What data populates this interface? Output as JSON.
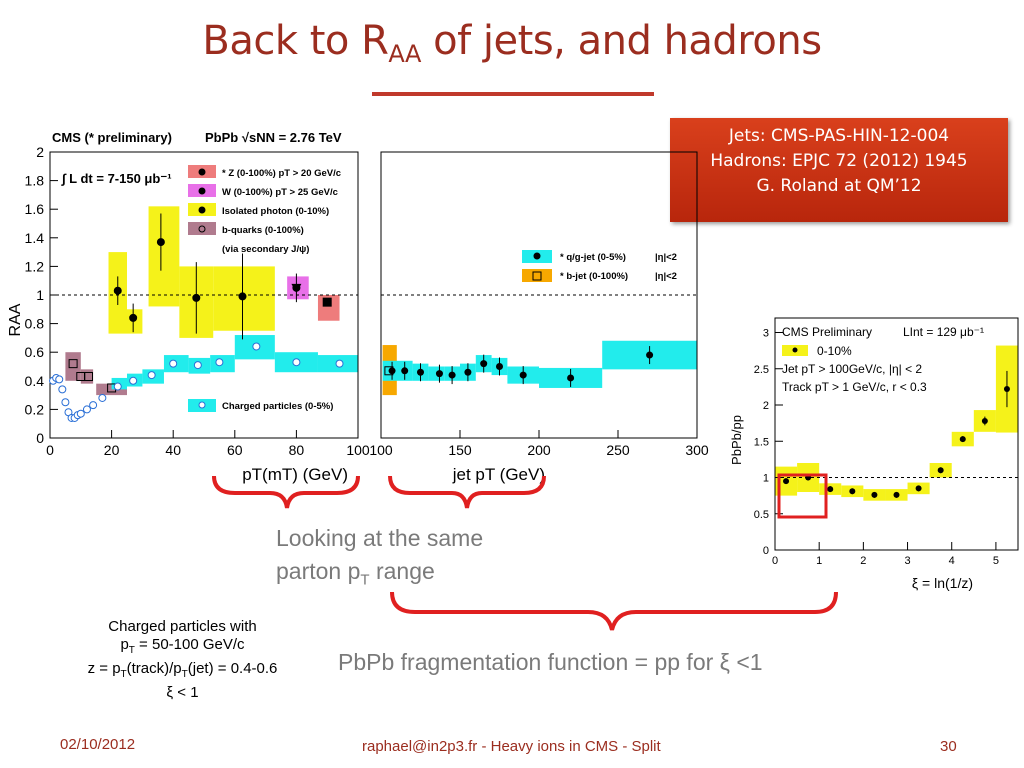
{
  "slide": {
    "title_main": "Back to R",
    "title_sub": "AA",
    "title_rest": " of jets, and hadrons",
    "refbox": [
      "Jets: CMS-PAS-HIN-12-004",
      "Hadrons: EPJC 72 (2012) 1945",
      "G. Roland at QM’12"
    ],
    "callout_same_range": [
      "Looking at the same",
      "parton p",
      "T",
      " range"
    ],
    "callout_ff": "PbPb fragmentation function = pp  for ξ <1",
    "charged_note": [
      "Charged particles with",
      "p",
      "T",
      " = 50-100 GeV/c",
      "z = p",
      "T",
      "(track)/p",
      "T",
      "(jet) = 0.4-0.6",
      "ξ < 1"
    ],
    "footer_date": "02/10/2012",
    "footer_center": "raphael@in2p3.fr - Heavy ions in CMS - Split",
    "footer_page": "30",
    "colors": {
      "title": "#9b2d1f",
      "bracket": "#e02020",
      "yellow": "#f5f21a",
      "cyan": "#22ecec",
      "orange": "#f7a800",
      "pink": "#ee7c7c",
      "magenta": "#e870e8",
      "mauve": "#b07b8e"
    }
  },
  "chart_data": [
    {
      "type": "scatter",
      "title": "CMS (* preliminary)",
      "subtitle": "PbPb √sNN = 2.76 TeV",
      "lumi": "∫ L dt = 7-150 μb⁻¹",
      "xlabel": "pT(mT) (GeV)",
      "ylabel": "RAA",
      "xlim": [
        0,
        100
      ],
      "ylim": [
        0,
        2
      ],
      "xticks": [
        "0",
        "20",
        "40",
        "60",
        "80",
        "100"
      ],
      "yticks": [
        "0",
        "0.2",
        "0.4",
        "0.6",
        "0.8",
        "1",
        "1.2",
        "1.4",
        "1.6",
        "1.8",
        "2"
      ],
      "reference_line": 1,
      "legend": [
        "* Z  (0-100%) pT > 20 GeV/c",
        "W  (0-100%) pT > 25 GeV/c",
        "Isolated photon  (0-10%)",
        "b-quarks (0-100%)",
        "(via secondary J/ψ)",
        "Charged particles (0-5%)"
      ],
      "series": [
        {
          "name": "Isolated photon  (0-10%)",
          "x": [
            22,
            27,
            36,
            47.5,
            62.5,
            80
          ],
          "y": [
            1.03,
            0.84,
            1.37,
            0.98,
            0.99,
            1.05
          ],
          "err": [
            0.1,
            0.1,
            0.2,
            0.25,
            0.3,
            0.1
          ]
        },
        {
          "name": "* Z  (0-100%) pT > 20 GeV/c",
          "x": [
            90
          ],
          "y": [
            0.95
          ]
        },
        {
          "name": "W  (0-100%) pT > 25 GeV/c",
          "x": [
            80
          ],
          "y": [
            1.05
          ]
        },
        {
          "name": "b-quarks (0-100%)",
          "x": [
            7.5,
            10,
            12.5,
            20
          ],
          "y": [
            0.52,
            0.43,
            0.43,
            0.35
          ]
        },
        {
          "name": "Charged particles (0-5%)",
          "x": [
            1,
            2,
            3,
            4,
            5,
            6,
            7,
            8,
            9,
            10,
            12,
            14,
            17,
            22,
            27,
            33,
            40,
            48,
            55,
            67,
            80,
            94
          ],
          "y": [
            0.4,
            0.42,
            0.41,
            0.34,
            0.25,
            0.18,
            0.14,
            0.14,
            0.16,
            0.17,
            0.2,
            0.23,
            0.28,
            0.36,
            0.4,
            0.44,
            0.52,
            0.51,
            0.53,
            0.64,
            0.53,
            0.52
          ]
        }
      ]
    },
    {
      "type": "scatter",
      "xlabel": "jet pT (GeV)",
      "ylim": [
        0,
        2
      ],
      "xlim": [
        100,
        300
      ],
      "xticks": [
        "100",
        "150",
        "200",
        "250",
        "300"
      ],
      "reference_line": 1,
      "legend": [
        "* q/g-jet  (0-5%)",
        "|η|<2",
        "* b-jet  (0-100%)",
        "|η|<2"
      ],
      "series": [
        {
          "name": "* q/g-jet  (0-5%)",
          "x": [
            107,
            115,
            125,
            137,
            145,
            155,
            165,
            175,
            190,
            220,
            270
          ],
          "y": [
            0.47,
            0.47,
            0.46,
            0.45,
            0.44,
            0.46,
            0.52,
            0.5,
            0.44,
            0.42,
            0.58
          ]
        },
        {
          "name": "* b-jet  (0-100%)",
          "x": [
            105
          ],
          "y": [
            0.47
          ]
        }
      ]
    },
    {
      "type": "scatter",
      "title": "CMS Preliminary",
      "lumi": "LInt = 129 μb⁻¹",
      "xlabel": "ξ = ln(1/z)",
      "ylabel": "PbPb/pp",
      "xlim": [
        0,
        5.5
      ],
      "ylim": [
        0,
        3.2
      ],
      "xticks": [
        "0",
        "1",
        "2",
        "3",
        "4",
        "5"
      ],
      "yticks": [
        "0",
        "0.5",
        "1",
        "1.5",
        "2",
        "2.5",
        "3"
      ],
      "reference_line": 1,
      "legend": [
        "0-10%",
        "Jet pT  > 100GeV/c, |η| < 2",
        "Track pT  > 1 GeV/c, r < 0.3"
      ],
      "series": [
        {
          "name": "0-10%",
          "x": [
            0.25,
            0.75,
            1.25,
            1.75,
            2.25,
            2.75,
            3.25,
            3.75,
            4.25,
            4.75,
            5.25
          ],
          "y": [
            0.95,
            1.0,
            0.84,
            0.81,
            0.76,
            0.76,
            0.85,
            1.1,
            1.53,
            1.78,
            2.22
          ]
        }
      ]
    }
  ]
}
